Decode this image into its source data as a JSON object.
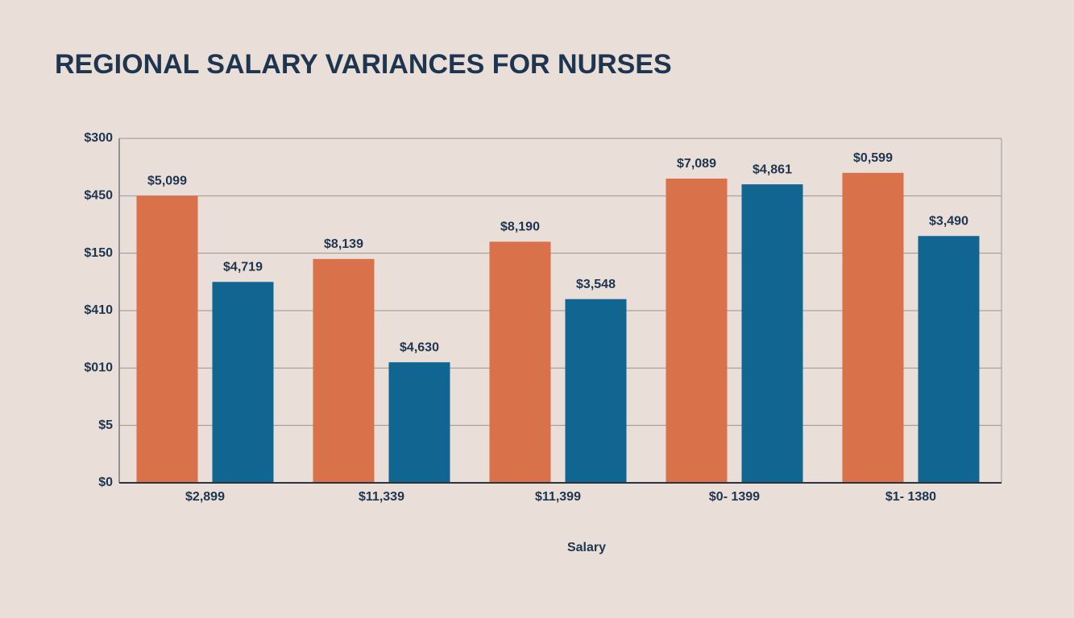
{
  "chart_data": {
    "type": "bar",
    "title": "REGIONAL SALARY VARIANCES FOR NURSES",
    "x_label": "Salary",
    "categories": [
      "$2,899",
      "$11,339",
      "$11,399",
      "$0- 1399",
      "$1- 1380"
    ],
    "series": [
      {
        "color": "#d9714a",
        "values": [
          5.0,
          3.9,
          4.2,
          5.3,
          5.4
        ],
        "value_labels": [
          "$5,099",
          "$8,139",
          "$8,190",
          "$7,089",
          "$0,599"
        ]
      },
      {
        "color": "#106690",
        "values": [
          3.5,
          2.1,
          3.2,
          5.2,
          4.3
        ],
        "value_labels": [
          "$4,719",
          "$4,630",
          "$3,548",
          "$4,861",
          "$3,490"
        ]
      }
    ],
    "ylim": [
      0,
      6
    ],
    "yticks": [
      {
        "value": 0,
        "label": "$0"
      },
      {
        "value": 1,
        "label": "$5"
      },
      {
        "value": 2,
        "label": "$010"
      },
      {
        "value": 3,
        "label": "$410"
      },
      {
        "value": 4,
        "label": "$150"
      },
      {
        "value": 5,
        "label": "$450"
      },
      {
        "value": 6,
        "label": "$300"
      }
    ],
    "grid": true
  }
}
